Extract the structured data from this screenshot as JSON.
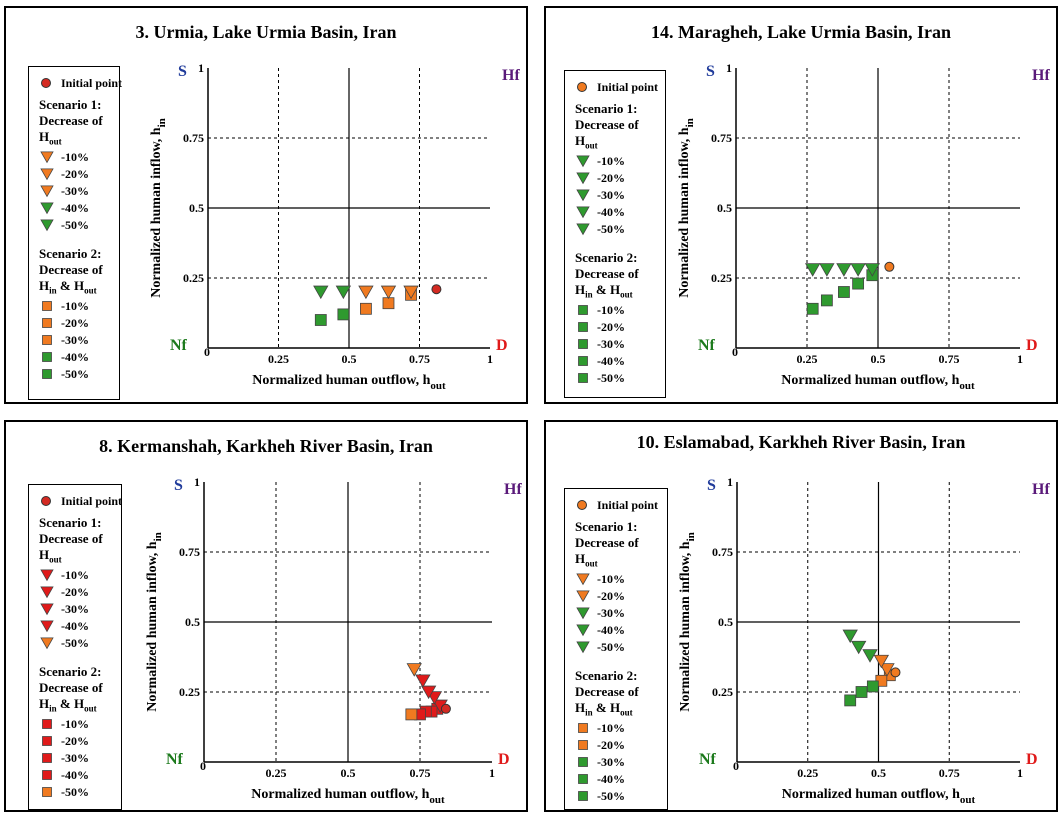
{
  "common": {
    "corner_labels": {
      "S": "S",
      "Hf": "Hf",
      "Nf": "Nf",
      "D": "D"
    },
    "corner_colors": {
      "S": "#1f3a9a",
      "Hf": "#5a1a7a",
      "Nf": "#1c7a1c",
      "D": "#e01a1a"
    },
    "xlabel": "Normalized human outflow, h",
    "xlabel_sub": "out",
    "ylabel": "Normalized human inflow, h",
    "ylabel_sub": "in",
    "ticks": [
      "0",
      "0.25",
      "0.5",
      "0.75",
      "1"
    ],
    "legend": {
      "initial": "Initial point",
      "s1_line1": "Scenario 1:",
      "s1_line2": "Decrease of",
      "s1_line3": "H",
      "s1_line3_sub": "out",
      "s2_line1": "Scenario 2:",
      "s2_line2": "Decrease of",
      "s2_line3a": "H",
      "s2_line3a_sub": "in",
      "s2_line3b": " & H",
      "s2_line3b_sub": "out",
      "pcts": [
        "-10%",
        "-20%",
        "-30%",
        "-40%",
        "-50%"
      ]
    }
  },
  "chart_data": [
    {
      "type": "scatter",
      "title": "3. Urmia, Lake Urmia Basin, Iran",
      "xlabel": "Normalized human outflow, hout",
      "ylabel": "Normalized human inflow, hin",
      "xlim": [
        0,
        1
      ],
      "ylim": [
        0,
        1
      ],
      "grid": "dashed at 0.25 and 0.75, solid at 0.5",
      "initial_point": {
        "x": 0.81,
        "y": 0.21,
        "color": "#d42a22"
      },
      "scenario1": {
        "marker": "triangle-down",
        "points": [
          {
            "label": "-10%",
            "x": 0.72,
            "y": 0.2,
            "color": "#f07a20"
          },
          {
            "label": "-20%",
            "x": 0.64,
            "y": 0.2,
            "color": "#f07a20"
          },
          {
            "label": "-30%",
            "x": 0.56,
            "y": 0.2,
            "color": "#f07a20"
          },
          {
            "label": "-40%",
            "x": 0.48,
            "y": 0.2,
            "color": "#2f9a2f"
          },
          {
            "label": "-50%",
            "x": 0.4,
            "y": 0.2,
            "color": "#2f9a2f"
          }
        ]
      },
      "scenario2": {
        "marker": "square",
        "points": [
          {
            "label": "-10%",
            "x": 0.72,
            "y": 0.19,
            "color": "#f07a20"
          },
          {
            "label": "-20%",
            "x": 0.64,
            "y": 0.16,
            "color": "#f07a20"
          },
          {
            "label": "-30%",
            "x": 0.56,
            "y": 0.14,
            "color": "#f07a20"
          },
          {
            "label": "-40%",
            "x": 0.48,
            "y": 0.12,
            "color": "#2f9a2f"
          },
          {
            "label": "-50%",
            "x": 0.4,
            "y": 0.1,
            "color": "#2f9a2f"
          }
        ]
      }
    },
    {
      "type": "scatter",
      "title": "14. Maragheh, Lake Urmia Basin, Iran",
      "xlabel": "Normalized human outflow, hout",
      "ylabel": "Normalized human inflow, hin",
      "xlim": [
        0,
        1
      ],
      "ylim": [
        0,
        1
      ],
      "grid": "dashed at 0.25 and 0.75, solid at 0.5",
      "initial_point": {
        "x": 0.54,
        "y": 0.29,
        "color": "#f07a20"
      },
      "scenario1": {
        "marker": "triangle-down",
        "points": [
          {
            "label": "-10%",
            "x": 0.48,
            "y": 0.28,
            "color": "#2f9a2f"
          },
          {
            "label": "-20%",
            "x": 0.43,
            "y": 0.28,
            "color": "#2f9a2f"
          },
          {
            "label": "-30%",
            "x": 0.38,
            "y": 0.28,
            "color": "#2f9a2f"
          },
          {
            "label": "-40%",
            "x": 0.32,
            "y": 0.28,
            "color": "#2f9a2f"
          },
          {
            "label": "-50%",
            "x": 0.27,
            "y": 0.28,
            "color": "#2f9a2f"
          }
        ]
      },
      "scenario2": {
        "marker": "square",
        "points": [
          {
            "label": "-10%",
            "x": 0.48,
            "y": 0.26,
            "color": "#2f9a2f"
          },
          {
            "label": "-20%",
            "x": 0.43,
            "y": 0.23,
            "color": "#2f9a2f"
          },
          {
            "label": "-30%",
            "x": 0.38,
            "y": 0.2,
            "color": "#2f9a2f"
          },
          {
            "label": "-40%",
            "x": 0.32,
            "y": 0.17,
            "color": "#2f9a2f"
          },
          {
            "label": "-50%",
            "x": 0.27,
            "y": 0.14,
            "color": "#2f9a2f"
          }
        ]
      }
    },
    {
      "type": "scatter",
      "title": "8. Kermanshah, Karkheh River Basin, Iran",
      "xlabel": "Normalized human outflow, hout",
      "ylabel": "Normalized human inflow, hin",
      "xlim": [
        0,
        1
      ],
      "ylim": [
        0,
        1
      ],
      "grid": "dashed at 0.25 and 0.75, solid at 0.5",
      "initial_point": {
        "x": 0.84,
        "y": 0.19,
        "color": "#d42a22"
      },
      "scenario1": {
        "marker": "triangle-down",
        "points": [
          {
            "label": "-10%",
            "x": 0.82,
            "y": 0.2,
            "color": "#e01a1a"
          },
          {
            "label": "-20%",
            "x": 0.8,
            "y": 0.23,
            "color": "#e01a1a"
          },
          {
            "label": "-30%",
            "x": 0.78,
            "y": 0.25,
            "color": "#e01a1a"
          },
          {
            "label": "-40%",
            "x": 0.76,
            "y": 0.29,
            "color": "#e01a1a"
          },
          {
            "label": "-50%",
            "x": 0.73,
            "y": 0.33,
            "color": "#f07a20"
          }
        ]
      },
      "scenario2": {
        "marker": "square",
        "points": [
          {
            "label": "-10%",
            "x": 0.81,
            "y": 0.19,
            "color": "#e01a1a"
          },
          {
            "label": "-20%",
            "x": 0.79,
            "y": 0.18,
            "color": "#e01a1a"
          },
          {
            "label": "-30%",
            "x": 0.77,
            "y": 0.18,
            "color": "#e01a1a"
          },
          {
            "label": "-40%",
            "x": 0.75,
            "y": 0.17,
            "color": "#e01a1a"
          },
          {
            "label": "-50%",
            "x": 0.72,
            "y": 0.17,
            "color": "#f07a20"
          }
        ]
      }
    },
    {
      "type": "scatter",
      "title": "10. Eslamabad, Karkheh River Basin, Iran",
      "xlabel": "Normalized human outflow, hout",
      "ylabel": "Normalized human inflow, hin",
      "xlim": [
        0,
        1
      ],
      "ylim": [
        0,
        1
      ],
      "grid": "dashed at 0.25 and 0.75, solid at 0.5",
      "initial_point": {
        "x": 0.56,
        "y": 0.32,
        "color": "#f07a20"
      },
      "scenario1": {
        "marker": "triangle-down",
        "points": [
          {
            "label": "-10%",
            "x": 0.53,
            "y": 0.33,
            "color": "#f07a20"
          },
          {
            "label": "-20%",
            "x": 0.51,
            "y": 0.36,
            "color": "#f07a20"
          },
          {
            "label": "-30%",
            "x": 0.47,
            "y": 0.38,
            "color": "#2f9a2f"
          },
          {
            "label": "-40%",
            "x": 0.43,
            "y": 0.41,
            "color": "#2f9a2f"
          },
          {
            "label": "-50%",
            "x": 0.4,
            "y": 0.45,
            "color": "#2f9a2f"
          }
        ]
      },
      "scenario2": {
        "marker": "square",
        "points": [
          {
            "label": "-10%",
            "x": 0.54,
            "y": 0.31,
            "color": "#f07a20"
          },
          {
            "label": "-20%",
            "x": 0.51,
            "y": 0.29,
            "color": "#f07a20"
          },
          {
            "label": "-30%",
            "x": 0.48,
            "y": 0.27,
            "color": "#2f9a2f"
          },
          {
            "label": "-40%",
            "x": 0.44,
            "y": 0.25,
            "color": "#2f9a2f"
          },
          {
            "label": "-50%",
            "x": 0.4,
            "y": 0.22,
            "color": "#2f9a2f"
          }
        ]
      }
    }
  ]
}
